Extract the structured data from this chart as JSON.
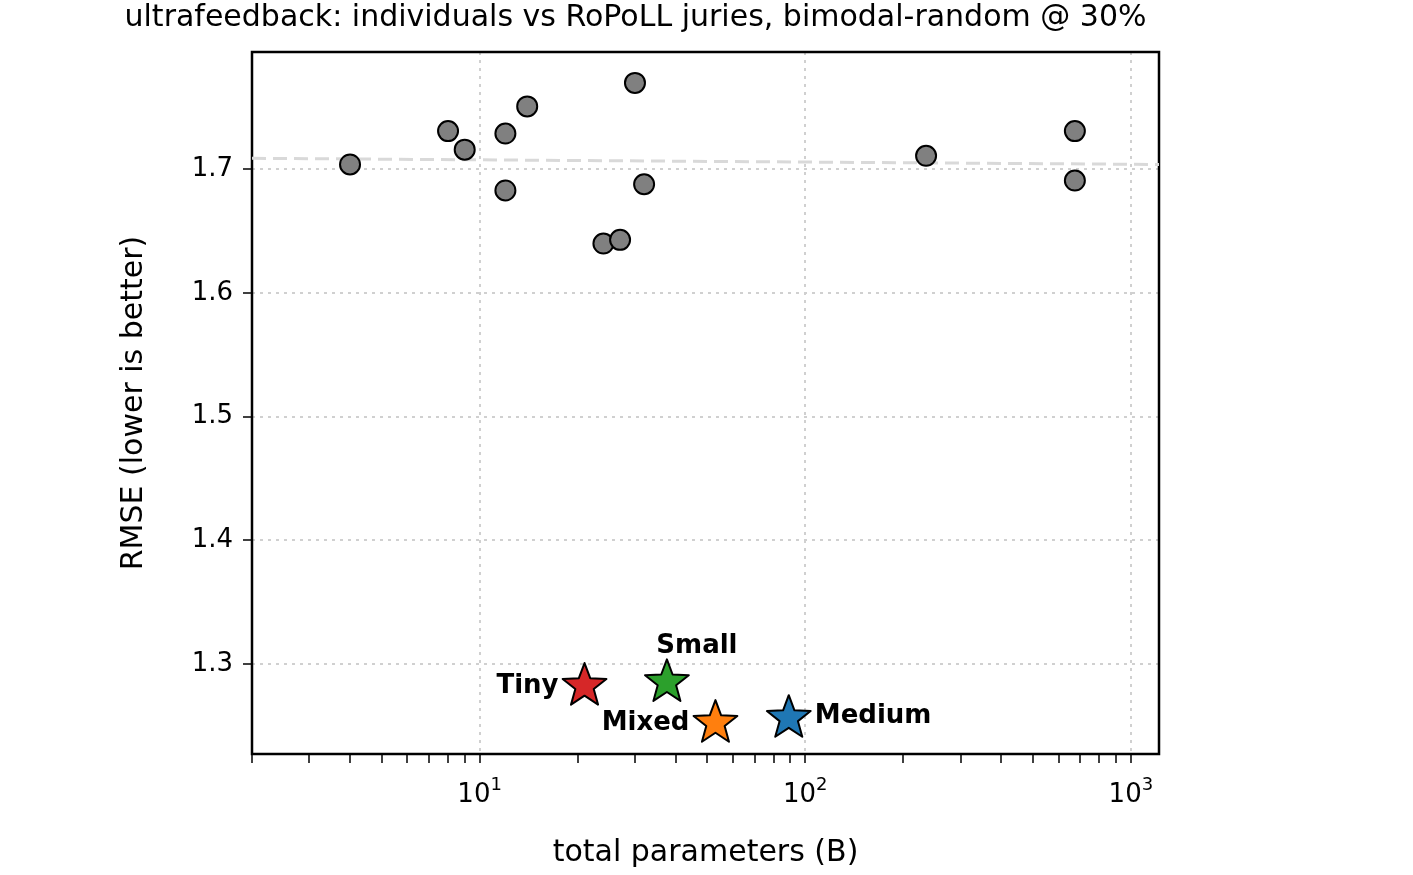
{
  "chart_data": {
    "type": "scatter",
    "title": "ultrafeedback: individuals vs RoPoLL juries, bimodal-random @ 30%",
    "xlabel": "total parameters (B)",
    "ylabel": "RMSE (lower is better)",
    "log": "x",
    "grid": true,
    "legend": false,
    "xlim": [
      2,
      1220
    ],
    "ylim": [
      1.227,
      1.795
    ],
    "xticks": [
      {
        "value": 2,
        "label": null
      },
      {
        "value": 3,
        "label": null
      },
      {
        "value": 4,
        "label": null
      },
      {
        "value": 5,
        "label": null
      },
      {
        "value": 6,
        "label": null
      },
      {
        "value": 7,
        "label": null
      },
      {
        "value": 8,
        "label": null
      },
      {
        "value": 9,
        "label": null
      },
      {
        "value": 10,
        "label": "10$^{1}$"
      },
      {
        "value": 20,
        "label": null
      },
      {
        "value": 30,
        "label": null
      },
      {
        "value": 40,
        "label": null
      },
      {
        "value": 50,
        "label": null
      },
      {
        "value": 60,
        "label": null
      },
      {
        "value": 70,
        "label": null
      },
      {
        "value": 80,
        "label": null
      },
      {
        "value": 90,
        "label": null
      },
      {
        "value": 100,
        "label": "10$^{2}$"
      },
      {
        "value": 200,
        "label": null
      },
      {
        "value": 300,
        "label": null
      },
      {
        "value": 400,
        "label": null
      },
      {
        "value": 500,
        "label": null
      },
      {
        "value": 600,
        "label": null
      },
      {
        "value": 700,
        "label": null
      },
      {
        "value": 800,
        "label": null
      },
      {
        "value": 900,
        "label": null
      },
      {
        "value": 1000,
        "label": "10$^{3}$"
      }
    ],
    "yticks": [
      1.3,
      1.4,
      1.5,
      1.6,
      1.7
    ],
    "series": [
      {
        "color": "#808080",
        "marker": "circle",
        "x": [
          4,
          8,
          9,
          12,
          14,
          12,
          30,
          32,
          24,
          27,
          235,
          673,
          673
        ],
        "values": [
          1.704,
          1.731,
          1.716,
          1.729,
          1.751,
          1.683,
          1.77,
          1.688,
          1.64,
          1.643,
          1.711,
          1.731,
          1.691
        ]
      },
      {
        "type": "line",
        "color": "#d9d9d9",
        "line_style": "dashed",
        "marker": "none",
        "x": [
          2,
          1220
        ],
        "values": [
          1.709,
          1.704
        ]
      },
      {
        "name": "Tiny",
        "color": "#d62728",
        "marker": "star",
        "x": [
          21
        ],
        "values": [
          1.282
        ]
      },
      {
        "name": "Small",
        "color": "#2ca02c",
        "marker": "star",
        "x": [
          37.6
        ],
        "values": [
          1.285
        ]
      },
      {
        "name": "Mixed",
        "color": "#ff7f0e",
        "marker": "star",
        "x": [
          53
        ],
        "values": [
          1.252
        ]
      },
      {
        "name": "Medium",
        "color": "#1f77b4",
        "marker": "star",
        "x": [
          89
        ],
        "values": [
          1.256
        ]
      }
    ]
  }
}
